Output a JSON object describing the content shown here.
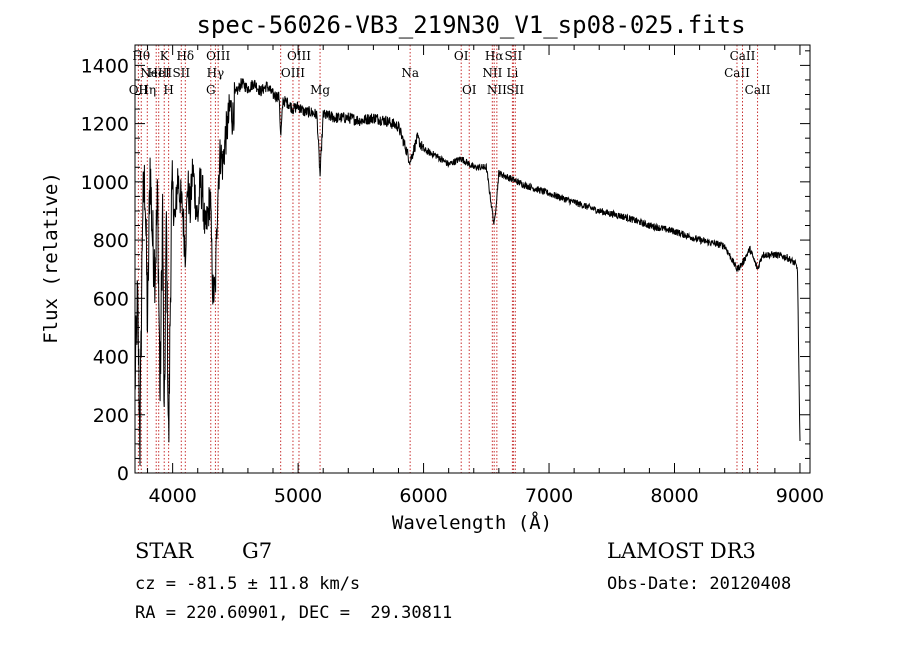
{
  "chart_data": {
    "type": "line",
    "title": "spec-56026-VB3_219N30_V1_sp08-025.fits",
    "xlabel": "Wavelength (Å)",
    "ylabel": "Flux (relative)",
    "xlim": [
      3700,
      9080
    ],
    "ylim": [
      0,
      1470
    ],
    "xticks": [
      4000,
      5000,
      6000,
      7000,
      8000,
      9000
    ],
    "yticks": [
      0,
      200,
      400,
      600,
      800,
      1000,
      1200,
      1400
    ],
    "series": [
      {
        "name": "flux",
        "x": [
          3700,
          3720,
          3740,
          3760,
          3780,
          3800,
          3820,
          3840,
          3860,
          3880,
          3900,
          3920,
          3933,
          3950,
          3968,
          3990,
          4000,
          4020,
          4040,
          4060,
          4080,
          4101,
          4120,
          4140,
          4160,
          4180,
          4200,
          4220,
          4240,
          4260,
          4280,
          4300,
          4320,
          4340,
          4360,
          4380,
          4400,
          4420,
          4440,
          4460,
          4480,
          4500,
          4550,
          4600,
          4650,
          4700,
          4750,
          4800,
          4850,
          4861,
          4880,
          4920,
          4960,
          5000,
          5050,
          5100,
          5150,
          5175,
          5200,
          5300,
          5400,
          5500,
          5600,
          5700,
          5800,
          5893,
          5950,
          6000,
          6100,
          6200,
          6300,
          6400,
          6500,
          6563,
          6600,
          6700,
          6800,
          7000,
          7200,
          7400,
          7600,
          7800,
          8000,
          8200,
          8400,
          8498,
          8542,
          8600,
          8662,
          8700,
          8800,
          8900,
          8960,
          8980,
          8990,
          9000
        ],
        "values": [
          300,
          600,
          100,
          900,
          1000,
          500,
          1060,
          800,
          700,
          950,
          250,
          920,
          120,
          880,
          80,
          900,
          960,
          860,
          1020,
          950,
          900,
          760,
          1000,
          900,
          1050,
          950,
          870,
          1000,
          950,
          820,
          880,
          960,
          620,
          620,
          980,
          1100,
          1060,
          1150,
          1200,
          1260,
          1220,
          1300,
          1340,
          1320,
          1340,
          1310,
          1330,
          1300,
          1290,
          1150,
          1280,
          1270,
          1250,
          1260,
          1240,
          1240,
          1230,
          1020,
          1230,
          1220,
          1220,
          1210,
          1220,
          1210,
          1190,
          1070,
          1150,
          1110,
          1090,
          1060,
          1080,
          1050,
          1050,
          850,
          1030,
          1010,
          990,
          960,
          930,
          900,
          880,
          850,
          830,
          800,
          780,
          700,
          720,
          770,
          700,
          750,
          750,
          740,
          720,
          700,
          400,
          110
        ]
      }
    ],
    "line_markers": [
      {
        "wl": 3727,
        "labels": [
          {
            "text": "OII",
            "row": 3
          }
        ]
      },
      {
        "wl": 3750,
        "labels": [
          {
            "text": "Hθ",
            "row": 1
          }
        ]
      },
      {
        "wl": 3798,
        "labels": [
          {
            "text": "Hη",
            "row": 3
          }
        ]
      },
      {
        "wl": 3869,
        "labels": [
          {
            "text": "NeIII",
            "row": 2
          }
        ]
      },
      {
        "wl": 3889,
        "labels": [
          {
            "text": "HeI",
            "row": 2
          }
        ]
      },
      {
        "wl": 3933,
        "labels": [
          {
            "text": "K",
            "row": 1
          }
        ]
      },
      {
        "wl": 3968,
        "labels": [
          {
            "text": "H",
            "row": 3
          }
        ]
      },
      {
        "wl": 4069,
        "labels": [
          {
            "text": "SII",
            "row": 2
          }
        ]
      },
      {
        "wl": 4101,
        "labels": [
          {
            "text": "Hδ",
            "row": 1
          }
        ]
      },
      {
        "wl": 4304,
        "labels": [
          {
            "text": "G",
            "row": 3
          }
        ]
      },
      {
        "wl": 4341,
        "labels": [
          {
            "text": "Hγ",
            "row": 2
          }
        ]
      },
      {
        "wl": 4363,
        "labels": [
          {
            "text": "OIII",
            "row": 1
          }
        ]
      },
      {
        "wl": 4861,
        "labels": []
      },
      {
        "wl": 4959,
        "labels": [
          {
            "text": "OIII",
            "row": 2
          }
        ]
      },
      {
        "wl": 5007,
        "labels": [
          {
            "text": "OIII",
            "row": 1
          }
        ]
      },
      {
        "wl": 5175,
        "labels": [
          {
            "text": "Mg",
            "row": 3
          }
        ]
      },
      {
        "wl": 5893,
        "labels": [
          {
            "text": "Na",
            "row": 2
          }
        ]
      },
      {
        "wl": 6300,
        "labels": [
          {
            "text": "OI",
            "row": 1
          }
        ]
      },
      {
        "wl": 6364,
        "labels": [
          {
            "text": "OI",
            "row": 3
          }
        ]
      },
      {
        "wl": 6548,
        "labels": [
          {
            "text": "NII",
            "row": 2
          }
        ]
      },
      {
        "wl": 6563,
        "labels": [
          {
            "text": "Hα",
            "row": 1
          }
        ]
      },
      {
        "wl": 6584,
        "labels": [
          {
            "text": "NII",
            "row": 3
          }
        ]
      },
      {
        "wl": 6708,
        "labels": [
          {
            "text": "Li",
            "row": 2
          }
        ]
      },
      {
        "wl": 6716,
        "labels": [
          {
            "text": "SII",
            "row": 1
          }
        ]
      },
      {
        "wl": 6731,
        "labels": [
          {
            "text": "SII",
            "row": 3
          }
        ]
      },
      {
        "wl": 8498,
        "labels": [
          {
            "text": "CaII",
            "row": 2
          }
        ]
      },
      {
        "wl": 8542,
        "labels": [
          {
            "text": "CaII",
            "row": 1
          }
        ]
      },
      {
        "wl": 8662,
        "labels": [
          {
            "text": "CaII",
            "row": 3
          }
        ]
      }
    ]
  },
  "info": {
    "object_class": "STAR",
    "subclass": "G7",
    "redshift": "cz = -81.5 ± 11.8 km/s",
    "coords": "RA = 220.60901, DEC =  29.30811",
    "survey": "LAMOST DR3",
    "obs_date": "Obs-Date: 20120408"
  },
  "colors": {
    "marker": "#c83232",
    "ink": "#000000"
  }
}
